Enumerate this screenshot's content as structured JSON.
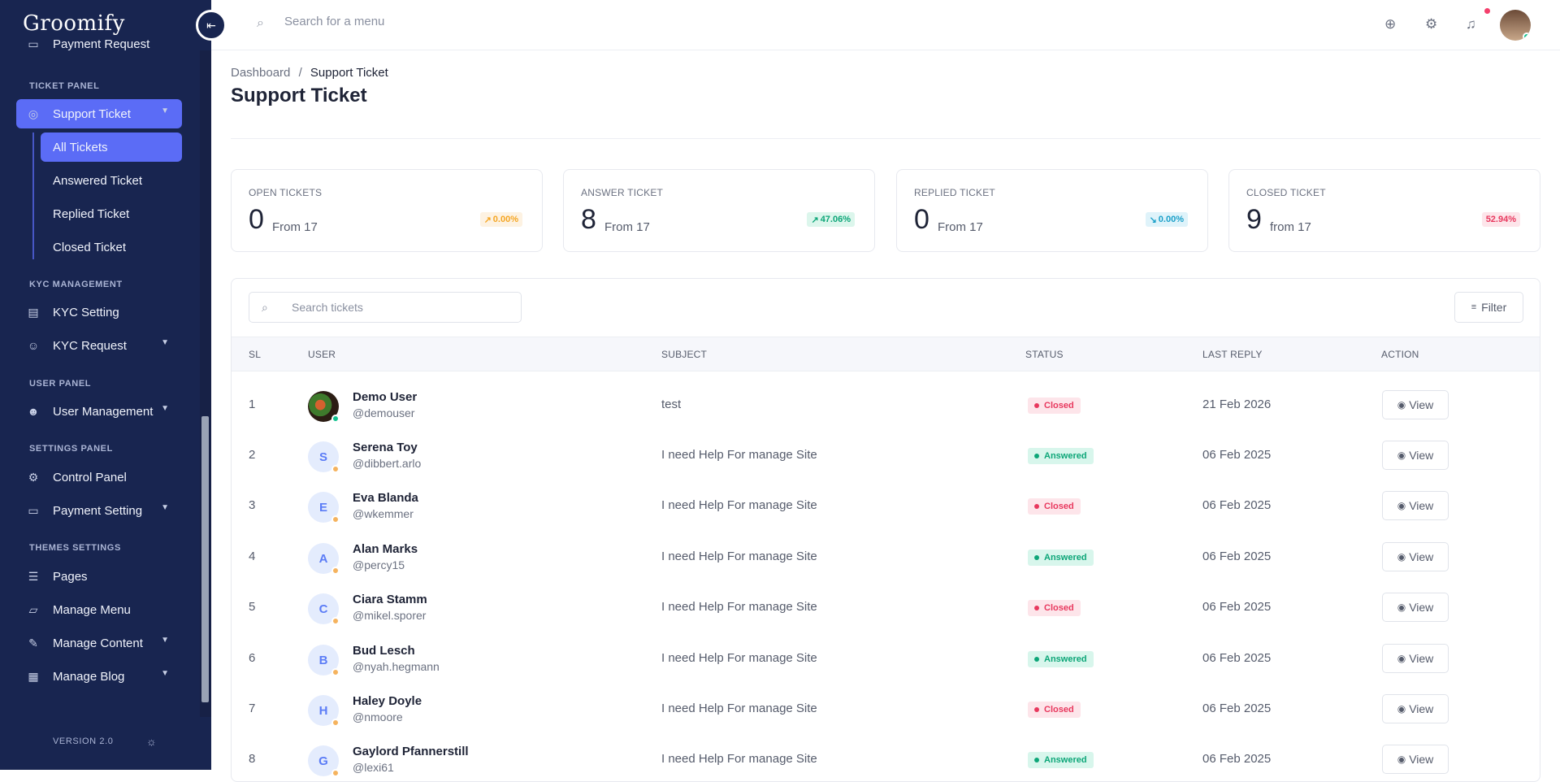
{
  "brand": {
    "name": "Groomify"
  },
  "sidebar": {
    "top_item": "Payment Request",
    "sections": {
      "ticket": "TICKET PANEL",
      "kyc": "KYC MANAGEMENT",
      "user": "USER PANEL",
      "settings": "SETTINGS PANEL",
      "themes": "THEMES SETTINGS"
    },
    "items": {
      "support_ticket": "Support Ticket",
      "kyc_setting": "KYC Setting",
      "kyc_request": "KYC Request",
      "user_management": "User Management",
      "control_panel": "Control Panel",
      "payment_setting": "Payment Setting",
      "pages": "Pages",
      "manage_menu": "Manage Menu",
      "manage_content": "Manage Content",
      "manage_blog": "Manage Blog"
    },
    "sub_items": [
      "All Tickets",
      "Answered Ticket",
      "Replied Ticket",
      "Closed Ticket"
    ],
    "version": "VERSION 2.0"
  },
  "topbar": {
    "search_placeholder": "Search for a menu"
  },
  "breadcrumb": {
    "root": "Dashboard",
    "sep": "/",
    "current": "Support Ticket"
  },
  "page_title": "Support Ticket",
  "stats": [
    {
      "label": "OPEN TICKETS",
      "value": "0",
      "from": "From 17",
      "pct": "0.00%",
      "color": "#f5a623"
    },
    {
      "label": "ANSWER TICKET",
      "value": "8",
      "from": "From 17",
      "pct": "47.06%",
      "color": "#0da678"
    },
    {
      "label": "REPLIED TICKET",
      "value": "0",
      "from": "From 17",
      "pct": "0.00%",
      "color": "#1ba0c9"
    },
    {
      "label": "CLOSED TICKET",
      "value": "9",
      "from": "from 17",
      "pct": "52.94%",
      "color": "#e8385e"
    }
  ],
  "table": {
    "search_placeholder": "Search tickets",
    "filter_label": "Filter",
    "headers": {
      "sl": "SL",
      "user": "USER",
      "subject": "SUBJECT",
      "status": "STATUS",
      "last_reply": "LAST REPLY",
      "action": "ACTION"
    },
    "view_label": "View",
    "rows": [
      {
        "sl": "1",
        "initial": "",
        "name": "Demo User",
        "handle": "@demouser",
        "subject": "test",
        "status": "Closed",
        "last_reply": "21 Feb 2026"
      },
      {
        "sl": "2",
        "initial": "S",
        "name": "Serena Toy",
        "handle": "@dibbert.arlo",
        "subject": "I need Help For manage Site",
        "status": "Answered",
        "last_reply": "06 Feb 2025"
      },
      {
        "sl": "3",
        "initial": "E",
        "name": "Eva Blanda",
        "handle": "@wkemmer",
        "subject": "I need Help For manage Site",
        "status": "Closed",
        "last_reply": "06 Feb 2025"
      },
      {
        "sl": "4",
        "initial": "A",
        "name": "Alan Marks",
        "handle": "@percy15",
        "subject": "I need Help For manage Site",
        "status": "Answered",
        "last_reply": "06 Feb 2025"
      },
      {
        "sl": "5",
        "initial": "C",
        "name": "Ciara Stamm",
        "handle": "@mikel.sporer",
        "subject": "I need Help For manage Site",
        "status": "Closed",
        "last_reply": "06 Feb 2025"
      },
      {
        "sl": "6",
        "initial": "B",
        "name": "Bud Lesch",
        "handle": "@nyah.hegmann",
        "subject": "I need Help For manage Site",
        "status": "Answered",
        "last_reply": "06 Feb 2025"
      },
      {
        "sl": "7",
        "initial": "H",
        "name": "Haley Doyle",
        "handle": "@nmoore",
        "subject": "I need Help For manage Site",
        "status": "Closed",
        "last_reply": "06 Feb 2025"
      },
      {
        "sl": "8",
        "initial": "G",
        "name": "Gaylord Pfannerstill",
        "handle": "@lexi61",
        "subject": "I need Help For manage Site",
        "status": "Answered",
        "last_reply": "06 Feb 2025"
      }
    ]
  }
}
